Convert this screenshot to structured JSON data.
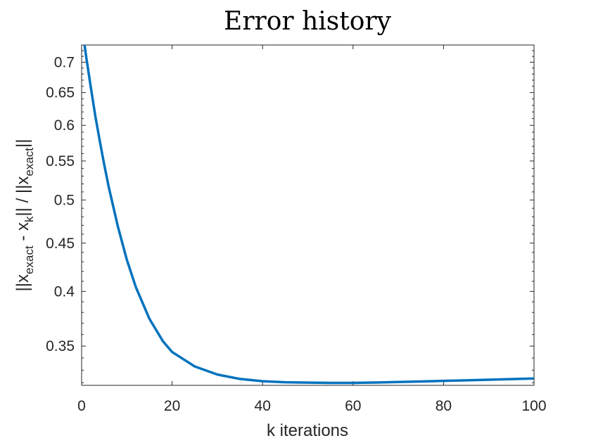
{
  "chart_data": {
    "type": "line",
    "title": "Error history",
    "xlabel": "k iterations",
    "ylabel_parts": {
      "p1": "||x",
      "sub1": "exact",
      "p2": " - x",
      "sub2": "k",
      "p3": "|| / ||x",
      "sub3": "exact",
      "p4": "||"
    },
    "x_scale": "linear",
    "y_scale": "log",
    "xlim": [
      0,
      100
    ],
    "ylim": [
      0.318,
      0.73
    ],
    "x_ticks": [
      0,
      20,
      40,
      60,
      80,
      100
    ],
    "x_tick_labels": [
      "0",
      "20",
      "40",
      "60",
      "80",
      "100"
    ],
    "y_ticks": [
      0.35,
      0.4,
      0.45,
      0.5,
      0.55,
      0.6,
      0.65,
      0.7
    ],
    "y_tick_labels": [
      "0.35",
      "0.4",
      "0.45",
      "0.5",
      "0.55",
      "0.6",
      "0.65",
      "0.7"
    ],
    "grid": false,
    "box": true,
    "series": [
      {
        "color": "#0072BD",
        "x": [
          0.6,
          1,
          2,
          3,
          4,
          5,
          6,
          8,
          10,
          12,
          15,
          18,
          20,
          25,
          30,
          35,
          40,
          45,
          50,
          55,
          58,
          60,
          65,
          70,
          75,
          80,
          85,
          90,
          95,
          100
        ],
        "y": [
          0.733,
          0.71,
          0.66,
          0.615,
          0.578,
          0.545,
          0.516,
          0.469,
          0.432,
          0.404,
          0.374,
          0.354,
          0.345,
          0.333,
          0.3265,
          0.323,
          0.3212,
          0.3204,
          0.3201,
          0.3199,
          0.3199,
          0.31995,
          0.3202,
          0.3206,
          0.321,
          0.3215,
          0.3219,
          0.3224,
          0.3229,
          0.3234
        ]
      }
    ]
  }
}
